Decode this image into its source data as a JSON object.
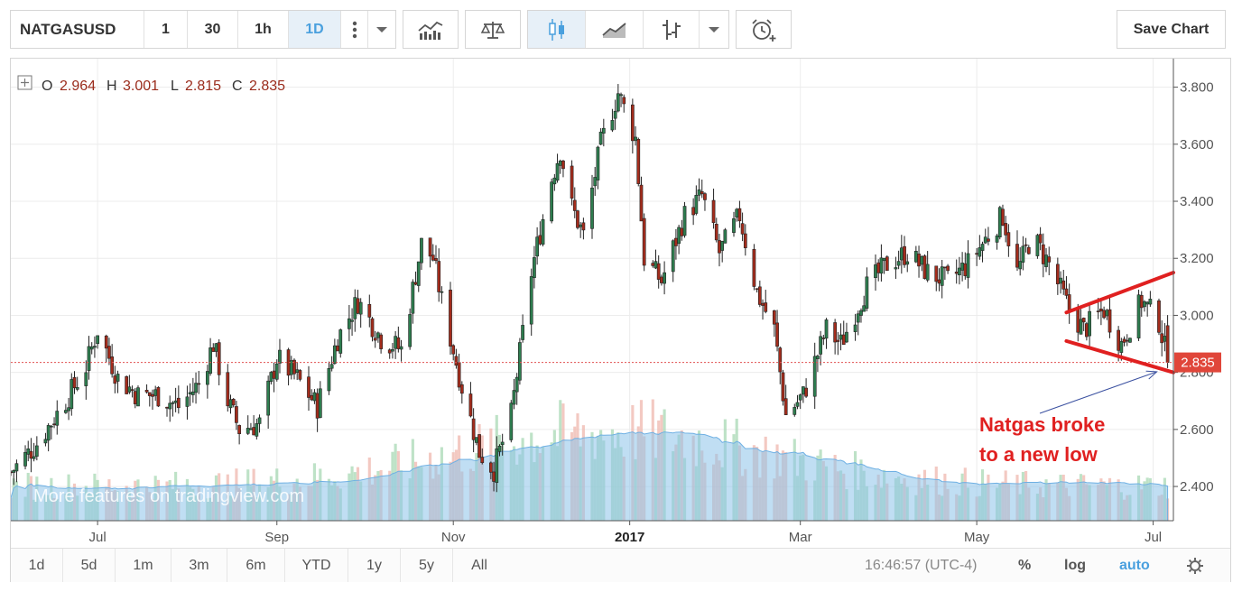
{
  "toolbar": {
    "symbol": "NATGASUSD",
    "intervals": [
      "1",
      "30",
      "1h",
      "1D"
    ],
    "active_interval": "1D",
    "save_label": "Save Chart"
  },
  "legend": {
    "open_label": "O",
    "open": "2.964",
    "high_label": "H",
    "high": "3.001",
    "low_label": "L",
    "low": "2.815",
    "close_label": "C",
    "close": "2.835"
  },
  "watermark": "More features on tradingview.com",
  "price_label": "2.835",
  "annotation": {
    "line1": "Natgas broke",
    "line2": "to a new low"
  },
  "bottom": {
    "ranges": [
      "1d",
      "5d",
      "1m",
      "3m",
      "6m",
      "YTD",
      "1y",
      "5y",
      "All"
    ],
    "time": "16:46:57 (UTC-4)",
    "percent": "%",
    "log": "log",
    "auto": "auto"
  },
  "colors": {
    "up": "#2e7d4f",
    "down": "#a32c1c",
    "accent": "#e02020",
    "volume": "#8fc3ea"
  },
  "chart_data": {
    "type": "candlestick",
    "symbol": "NATGASUSD",
    "interval": "1D",
    "y_ticks": [
      2.4,
      2.6,
      2.8,
      3.0,
      3.2,
      3.4,
      3.6,
      3.8
    ],
    "y_tick_labels": [
      "2.400",
      "2.600",
      "2.800",
      "3.000",
      "3.200",
      "3.400",
      "3.600",
      "3.800"
    ],
    "ylim": [
      2.28,
      3.9
    ],
    "x_tick_labels": [
      "Jul",
      "Sep",
      "Nov",
      "2017",
      "Mar",
      "May",
      "Jul"
    ],
    "x_ticks": [
      "2016-07-01",
      "2016-09-01",
      "2016-11-01",
      "2017-01-01",
      "2017-03-01",
      "2017-05-01",
      "2017-07-01"
    ],
    "x_range": [
      "2016-06-01",
      "2017-07-08"
    ],
    "close_path": [
      [
        "2016-06-01",
        2.45
      ],
      [
        "2016-06-10",
        2.55
      ],
      [
        "2016-06-20",
        2.7
      ],
      [
        "2016-06-27",
        2.82
      ],
      [
        "2016-07-01",
        2.95
      ],
      [
        "2016-07-08",
        2.78
      ],
      [
        "2016-07-15",
        2.72
      ],
      [
        "2016-07-22",
        2.72
      ],
      [
        "2016-07-29",
        2.68
      ],
      [
        "2016-08-05",
        2.76
      ],
      [
        "2016-08-10",
        2.9
      ],
      [
        "2016-08-15",
        2.7
      ],
      [
        "2016-08-19",
        2.6
      ],
      [
        "2016-08-26",
        2.62
      ],
      [
        "2016-09-01",
        2.85
      ],
      [
        "2016-09-08",
        2.78
      ],
      [
        "2016-09-15",
        2.68
      ],
      [
        "2016-09-22",
        2.92
      ],
      [
        "2016-09-29",
        3.05
      ],
      [
        "2016-10-07",
        2.92
      ],
      [
        "2016-10-14",
        2.88
      ],
      [
        "2016-10-21",
        3.25
      ],
      [
        "2016-10-25",
        3.2
      ],
      [
        "2016-10-28",
        3.05
      ],
      [
        "2016-11-04",
        2.75
      ],
      [
        "2016-11-10",
        2.52
      ],
      [
        "2016-11-15",
        2.46
      ],
      [
        "2016-11-21",
        2.65
      ],
      [
        "2016-11-28",
        3.15
      ],
      [
        "2016-12-05",
        3.48
      ],
      [
        "2016-12-08",
        3.58
      ],
      [
        "2016-12-12",
        3.38
      ],
      [
        "2016-12-16",
        3.28
      ],
      [
        "2016-12-22",
        3.6
      ],
      [
        "2016-12-28",
        3.78
      ],
      [
        "2017-01-03",
        3.62
      ],
      [
        "2017-01-06",
        3.2
      ],
      [
        "2017-01-12",
        3.12
      ],
      [
        "2017-01-20",
        3.35
      ],
      [
        "2017-01-26",
        3.42
      ],
      [
        "2017-02-01",
        3.22
      ],
      [
        "2017-02-08",
        3.35
      ],
      [
        "2017-02-14",
        3.08
      ],
      [
        "2017-02-20",
        2.95
      ],
      [
        "2017-02-24",
        2.65
      ],
      [
        "2017-03-02",
        2.72
      ],
      [
        "2017-03-10",
        2.95
      ],
      [
        "2017-03-15",
        2.9
      ],
      [
        "2017-03-24",
        3.1
      ],
      [
        "2017-03-31",
        3.18
      ],
      [
        "2017-04-07",
        3.22
      ],
      [
        "2017-04-14",
        3.15
      ],
      [
        "2017-04-21",
        3.12
      ],
      [
        "2017-04-28",
        3.18
      ],
      [
        "2017-05-05",
        3.28
      ],
      [
        "2017-05-10",
        3.35
      ],
      [
        "2017-05-15",
        3.15
      ],
      [
        "2017-05-20",
        3.28
      ],
      [
        "2017-05-26",
        3.18
      ],
      [
        "2017-06-02",
        3.02
      ],
      [
        "2017-06-07",
        2.95
      ],
      [
        "2017-06-14",
        3.02
      ],
      [
        "2017-06-20",
        2.9
      ],
      [
        "2017-06-27",
        3.05
      ],
      [
        "2017-07-03",
        2.98
      ],
      [
        "2017-07-06",
        2.835
      ]
    ],
    "last_candle": {
      "open": 2.964,
      "high": 3.001,
      "low": 2.815,
      "close": 2.835
    },
    "trendlines": [
      [
        [
          "2017-06-01",
          3.01
        ],
        [
          "2017-07-08",
          3.15
        ]
      ],
      [
        [
          "2017-06-01",
          2.91
        ],
        [
          "2017-07-08",
          2.8
        ]
      ]
    ],
    "price_line": 2.835
  }
}
